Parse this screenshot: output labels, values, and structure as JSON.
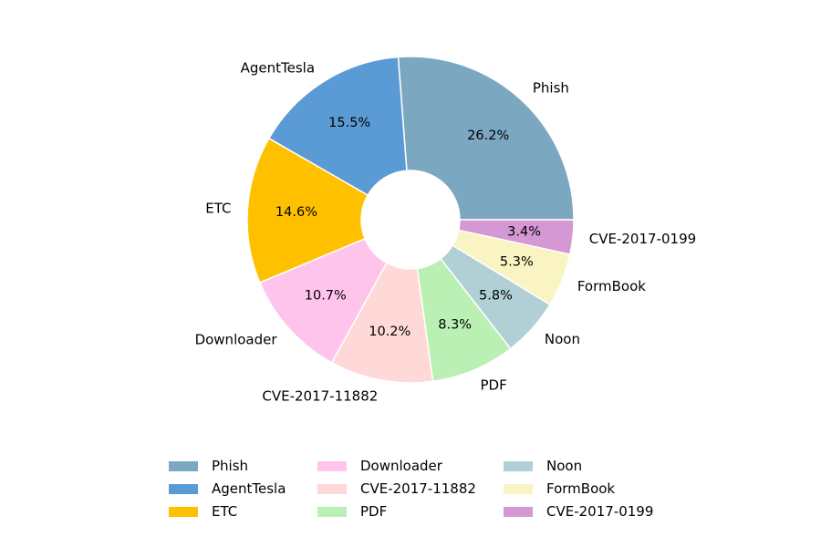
{
  "chart_data": {
    "type": "pie",
    "donut": true,
    "slices": [
      {
        "label": "Phish",
        "value": 26.2,
        "pct_label": "26.2%",
        "color": "#7BA7C0"
      },
      {
        "label": "AgentTesla",
        "value": 15.5,
        "pct_label": "15.5%",
        "color": "#5B9BD5"
      },
      {
        "label": "ETC",
        "value": 14.6,
        "pct_label": "14.6%",
        "color": "#FFC000"
      },
      {
        "label": "Downloader",
        "value": 10.7,
        "pct_label": "10.7%",
        "color": "#FFC4EC"
      },
      {
        "label": "CVE-2017-11882",
        "value": 10.2,
        "pct_label": "10.2%",
        "color": "#FFD8D8"
      },
      {
        "label": "PDF",
        "value": 8.3,
        "pct_label": "8.3%",
        "color": "#BAF0B4"
      },
      {
        "label": "Noon",
        "value": 5.8,
        "pct_label": "5.8%",
        "color": "#B1D0D6"
      },
      {
        "label": "FormBook",
        "value": 5.3,
        "pct_label": "5.3%",
        "color": "#FAF4C2"
      },
      {
        "label": "CVE-2017-0199",
        "value": 3.4,
        "pct_label": "3.4%",
        "color": "#D498D4"
      }
    ],
    "legend": {
      "placement": "bottom-center",
      "columns": 3
    }
  }
}
